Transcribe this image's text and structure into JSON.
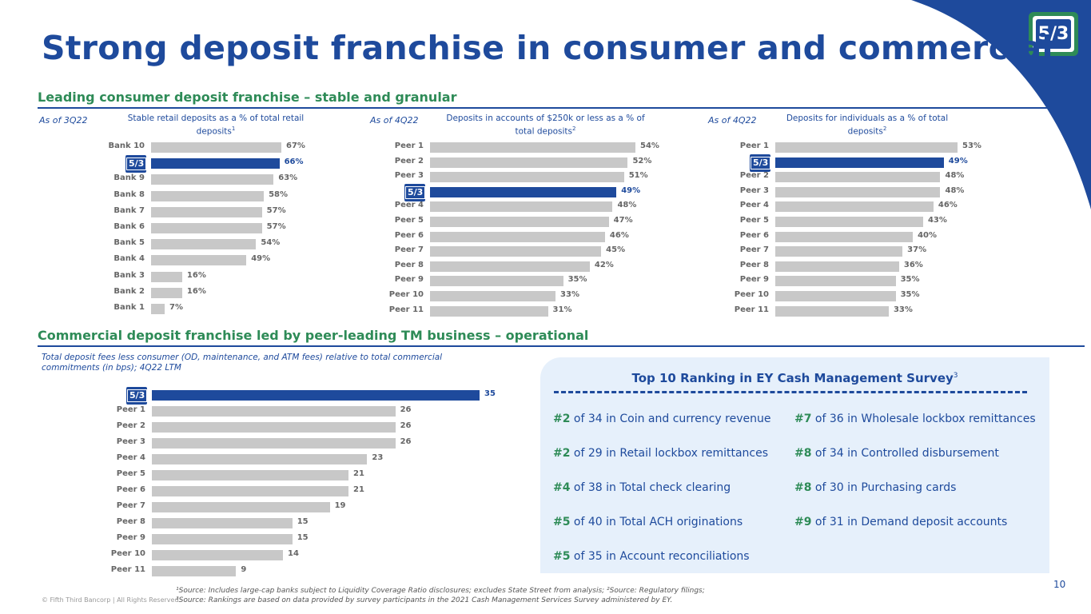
{
  "title": "Strong deposit franchise in consumer and commercial",
  "consumer": {
    "section_title": "Leading consumer deposit franchise – stable and granular",
    "charts": [
      {
        "as_of": "As of 3Q22",
        "subtitle": "Stable retail deposits as a % of total retail deposits",
        "subtitle_sup": "1",
        "items": [
          {
            "label": "Bank 10",
            "value": 67,
            "text": "67%"
          },
          {
            "label": "",
            "value": 66,
            "text": "66%",
            "highlight": true
          },
          {
            "label": "Bank 9",
            "value": 63,
            "text": "63%"
          },
          {
            "label": "Bank 8",
            "value": 58,
            "text": "58%"
          },
          {
            "label": "Bank 7",
            "value": 57,
            "text": "57%"
          },
          {
            "label": "Bank 6",
            "value": 57,
            "text": "57%"
          },
          {
            "label": "Bank 5",
            "value": 54,
            "text": "54%"
          },
          {
            "label": "Bank 4",
            "value": 49,
            "text": "49%"
          },
          {
            "label": "Bank 3",
            "value": 16,
            "text": "16%"
          },
          {
            "label": "Bank 2",
            "value": 16,
            "text": "16%"
          },
          {
            "label": "Bank 1",
            "value": 7,
            "text": "7%"
          }
        ]
      },
      {
        "as_of": "As of 4Q22",
        "subtitle": "Deposits in accounts of $250k or less as a % of total deposits",
        "subtitle_sup": "2",
        "items": [
          {
            "label": "Peer 1",
            "value": 54,
            "text": "54%"
          },
          {
            "label": "Peer 2",
            "value": 52,
            "text": "52%"
          },
          {
            "label": "Peer 3",
            "value": 51,
            "text": "51%"
          },
          {
            "label": "",
            "value": 49,
            "text": "49%",
            "highlight": true
          },
          {
            "label": "Peer 4",
            "value": 48,
            "text": "48%"
          },
          {
            "label": "Peer 5",
            "value": 47,
            "text": "47%"
          },
          {
            "label": "Peer 6",
            "value": 46,
            "text": "46%"
          },
          {
            "label": "Peer 7",
            "value": 45,
            "text": "45%"
          },
          {
            "label": "Peer 8",
            "value": 42,
            "text": "42%"
          },
          {
            "label": "Peer 9",
            "value": 35,
            "text": "35%"
          },
          {
            "label": "Peer 10",
            "value": 33,
            "text": "33%"
          },
          {
            "label": "Peer 11",
            "value": 31,
            "text": "31%"
          }
        ]
      },
      {
        "as_of": "As of 4Q22",
        "subtitle": "Deposits for individuals as a % of total deposits",
        "subtitle_sup": "2",
        "items": [
          {
            "label": "Peer 1",
            "value": 53,
            "text": "53%"
          },
          {
            "label": "",
            "value": 49,
            "text": "49%",
            "highlight": true
          },
          {
            "label": "Peer 2",
            "value": 48,
            "text": "48%"
          },
          {
            "label": "Peer 3",
            "value": 48,
            "text": "48%"
          },
          {
            "label": "Peer 4",
            "value": 46,
            "text": "46%"
          },
          {
            "label": "Peer 5",
            "value": 43,
            "text": "43%"
          },
          {
            "label": "Peer 6",
            "value": 40,
            "text": "40%"
          },
          {
            "label": "Peer 7",
            "value": 37,
            "text": "37%"
          },
          {
            "label": "Peer 8",
            "value": 36,
            "text": "36%"
          },
          {
            "label": "Peer 9",
            "value": 35,
            "text": "35%"
          },
          {
            "label": "Peer 10",
            "value": 35,
            "text": "35%"
          },
          {
            "label": "Peer 11",
            "value": 33,
            "text": "33%"
          }
        ]
      }
    ]
  },
  "commercial": {
    "section_title": "Commercial deposit franchise led by peer-leading TM business – operational",
    "chart_note": "Total deposit fees less consumer (OD, maintenance, and ATM fees) relative to total commercial commitments (in bps); 4Q22 LTM",
    "items": [
      {
        "label": "",
        "value": 35,
        "text": "35",
        "highlight": true
      },
      {
        "label": "Peer 1",
        "value": 26,
        "text": "26"
      },
      {
        "label": "Peer 2",
        "value": 26,
        "text": "26"
      },
      {
        "label": "Peer 3",
        "value": 26,
        "text": "26"
      },
      {
        "label": "Peer 4",
        "value": 23,
        "text": "23"
      },
      {
        "label": "Peer 5",
        "value": 21,
        "text": "21"
      },
      {
        "label": "Peer 6",
        "value": 21,
        "text": "21"
      },
      {
        "label": "Peer 7",
        "value": 19,
        "text": "19"
      },
      {
        "label": "Peer 8",
        "value": 15,
        "text": "15"
      },
      {
        "label": "Peer 9",
        "value": 15,
        "text": "15"
      },
      {
        "label": "Peer 10",
        "value": 14,
        "text": "14"
      },
      {
        "label": "Peer 11",
        "value": 9,
        "text": "9"
      }
    ]
  },
  "survey": {
    "title": "Top 10 Ranking in EY Cash Management Survey",
    "title_sup": "3",
    "left": [
      {
        "rank": "#2",
        "text": " of 34 in Coin and currency revenue"
      },
      {
        "rank": "#2",
        "text": " of 29 in Retail lockbox remittances"
      },
      {
        "rank": "#4",
        "text": " of 38 in Total check clearing"
      },
      {
        "rank": "#5",
        "text": " of 40 in Total ACH originations"
      },
      {
        "rank": "#5",
        "text": " of 35 in Account reconciliations"
      }
    ],
    "right": [
      {
        "rank": "#7",
        "text": " of 36 in Wholesale lockbox remittances"
      },
      {
        "rank": "#8",
        "text": " of 34 in Controlled disbursement"
      },
      {
        "rank": "#8",
        "text": " of 30 in Purchasing cards"
      },
      {
        "rank": "#9",
        "text": " of 31 in Demand deposit accounts"
      }
    ]
  },
  "footnotes": {
    "line1": "¹Source: Includes large-cap banks subject to Liquidity Coverage Ratio disclosures; excludes State Street from analysis; ²Source: Regulatory filings;",
    "line2": "³Source: Rankings are based on data provided by survey participants in the 2021 Cash Management Services Survey administered by EY."
  },
  "copyright": "© Fifth Third Bancorp | All Rights Reserved",
  "page_number": "10",
  "logo_text": "5/3",
  "colors": {
    "brand": "#1e4a9c",
    "accent": "#2e8b57",
    "bar": "#c8c8c8",
    "panel": "#e6f0fb"
  }
}
